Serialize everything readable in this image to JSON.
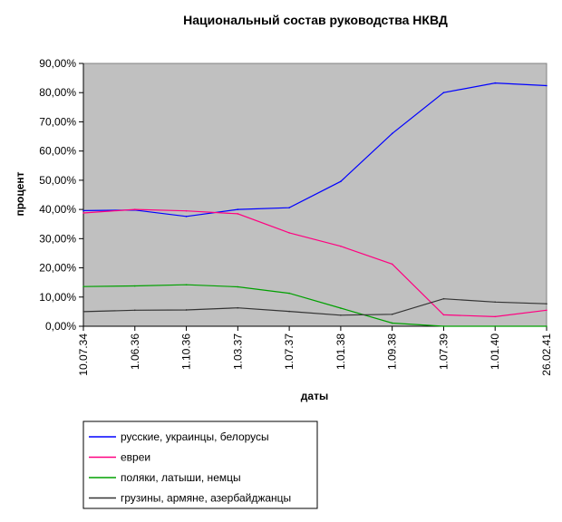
{
  "chart_data": {
    "type": "line",
    "title": "Национальный состав руководства НКВД",
    "xlabel": "даты",
    "ylabel": "процент",
    "categories": [
      "10.07.34",
      "1.06.36",
      "1.10.36",
      "1.03.37",
      "1.07.37",
      "1.01.38",
      "1.09.38",
      "1.07.39",
      "1.01.40",
      "26.02.41"
    ],
    "y_ticks": [
      "0,00%",
      "10,00%",
      "20,00%",
      "30,00%",
      "40,00%",
      "50,00%",
      "60,00%",
      "70,00%",
      "80,00%",
      "90,00%"
    ],
    "ylim": [
      0,
      90
    ],
    "plot_background": "#c0c0c0",
    "grid": false,
    "legend_position": "bottom",
    "series": [
      {
        "name": "русские, украинцы, белорусы",
        "color": "#0000ff",
        "values": [
          39.6,
          39.8,
          37.6,
          40.0,
          40.6,
          49.6,
          66.0,
          80.0,
          83.3,
          82.4
        ]
      },
      {
        "name": "евреи",
        "color": "#ff0080",
        "values": [
          38.8,
          40.0,
          39.5,
          38.5,
          32.0,
          27.4,
          21.3,
          3.9,
          3.3,
          5.5
        ]
      },
      {
        "name": "поляки, латыши, немцы",
        "color": "#00a000",
        "values": [
          13.6,
          13.8,
          14.2,
          13.5,
          11.3,
          6.2,
          1.1,
          0.0,
          0.0,
          0.0
        ]
      },
      {
        "name": "грузины, армяне, азербайджанцы",
        "color": "#333333",
        "values": [
          5.0,
          5.5,
          5.6,
          6.3,
          5.1,
          3.8,
          4.1,
          9.4,
          8.3,
          7.7
        ]
      }
    ]
  }
}
